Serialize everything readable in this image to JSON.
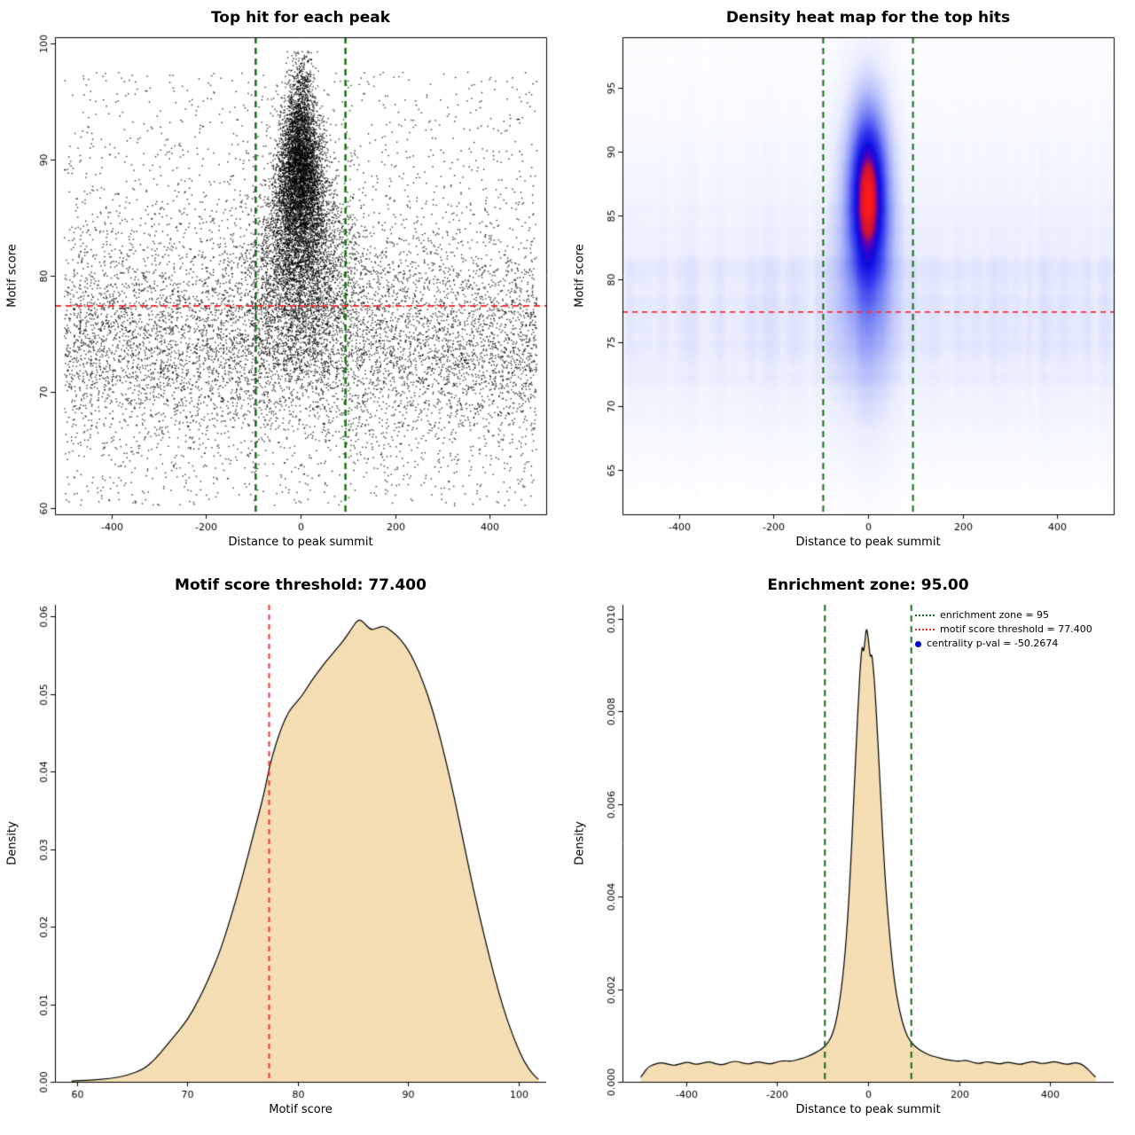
{
  "page": {
    "background": "#ffffff"
  },
  "chart_data": [
    {
      "id": "top-hit-scatter",
      "type": "scatter",
      "title": "Top hit for each peak",
      "xlabel": "Distance to peak summit",
      "ylabel": "Motif score",
      "xlim": [
        -520,
        520
      ],
      "ylim": [
        59.5,
        100.5
      ],
      "xticks": {
        "values": [
          -400,
          -200,
          0,
          200,
          400
        ],
        "labels": [
          "-400",
          "-200",
          "0",
          "200",
          "400"
        ]
      },
      "yticks": {
        "values": [
          60,
          70,
          80,
          90,
          100
        ],
        "labels": [
          "60",
          "70",
          "80",
          "90",
          "100"
        ]
      },
      "box": true,
      "point_color": "#000000",
      "clusters": [
        {
          "n": 6500,
          "x": {
            "dist": "uniform",
            "min": -500,
            "max": 500
          },
          "y": {
            "dist": "normal",
            "mean": 74.5,
            "sd": 4.8,
            "min": 60.2,
            "max": 93
          }
        },
        {
          "n": 2200,
          "x": {
            "dist": "uniform",
            "min": -500,
            "max": 500
          },
          "y": {
            "dist": "uniform",
            "min": 60.2,
            "max": 97.5
          }
        },
        {
          "n": 6000,
          "x": {
            "dist": "normal",
            "mean": 0,
            "sd": 38,
            "min": -260,
            "max": 260
          },
          "y": {
            "dist": "normal",
            "mean": 88.5,
            "sd": 4.4,
            "min": 73,
            "max": 99.3
          },
          "taper": {
            "yTop": 98,
            "range": 20,
            "minFrac": 0.35
          }
        },
        {
          "n": 2800,
          "x": {
            "dist": "normal",
            "mean": 0,
            "sd": 60,
            "min": -300,
            "max": 300
          },
          "y": {
            "dist": "normal",
            "mean": 80,
            "sd": 4.5,
            "min": 68,
            "max": 96
          }
        }
      ],
      "vlines": [
        {
          "x": -95,
          "color": "#166e16",
          "dash": [
            7,
            5
          ],
          "width": 2.5
        },
        {
          "x": 95,
          "color": "#166e16",
          "dash": [
            7,
            5
          ],
          "width": 2.5
        }
      ],
      "hlines": [
        {
          "y": 77.4,
          "color": "#ff3030",
          "dash": [
            7,
            5
          ],
          "width": 2
        }
      ]
    },
    {
      "id": "density-heatmap",
      "type": "heatmap",
      "title": "Density heat map for the top hits",
      "xlabel": "Distance to peak summit",
      "ylabel": "Motif score",
      "xlim": [
        -520,
        520
      ],
      "ylim": [
        61.5,
        99
      ],
      "xticks": {
        "values": [
          -400,
          -200,
          0,
          200,
          400
        ],
        "labels": [
          "-400",
          "-200",
          "0",
          "200",
          "400"
        ]
      },
      "yticks": {
        "values": [
          65,
          70,
          75,
          80,
          85,
          90,
          95
        ],
        "labels": [
          "65",
          "70",
          "75",
          "80",
          "85",
          "90",
          "95"
        ]
      },
      "box": true,
      "components": [
        {
          "kind": "gauss",
          "amp": 1.0,
          "x0": 0,
          "sx": 26,
          "y0": 87,
          "sy": 4.2
        },
        {
          "kind": "gauss",
          "amp": 0.5,
          "x0": 0,
          "sx": 38,
          "y0": 85.5,
          "sy": 6.5
        },
        {
          "kind": "gauss",
          "amp": 0.22,
          "x0": 0,
          "sx": 48,
          "y0": 78,
          "sy": 7
        },
        {
          "kind": "band",
          "amp": 0.12,
          "y0": 76.5,
          "sy": 5.5
        },
        {
          "kind": "band",
          "amp": 0.06,
          "y0": 83,
          "sy": 9
        }
      ],
      "noise": {
        "seed": 7,
        "strength": 0.75
      },
      "colormap": [
        [
          0.0,
          "#ffffff"
        ],
        [
          0.13,
          "#e9edfe"
        ],
        [
          0.28,
          "#bcc4fb"
        ],
        [
          0.45,
          "#7b86f5"
        ],
        [
          0.6,
          "#3a3fee"
        ],
        [
          0.74,
          "#0b0be0"
        ],
        [
          0.83,
          "#5500bb"
        ],
        [
          0.9,
          "#cc1133"
        ],
        [
          1.0,
          "#ff1a1a"
        ]
      ],
      "vlines": [
        {
          "x": -95,
          "color": "#166e16",
          "dash": [
            7,
            5
          ],
          "width": 2
        },
        {
          "x": 95,
          "color": "#166e16",
          "dash": [
            7,
            5
          ],
          "width": 2
        }
      ],
      "hlines": [
        {
          "y": 77.4,
          "color": "#ff3030",
          "dash": [
            6,
            5
          ],
          "width": 1.8
        }
      ]
    },
    {
      "id": "motif-score-density",
      "type": "density",
      "title": "Motif score threshold: 77.400",
      "xlabel": "Motif score",
      "ylabel": "Density",
      "xlim": [
        58,
        102.5
      ],
      "ylim": [
        0,
        0.0615
      ],
      "xticks": {
        "values": [
          60,
          70,
          80,
          90,
          100
        ],
        "labels": [
          "60",
          "70",
          "80",
          "90",
          "100"
        ]
      },
      "yticks": {
        "values": [
          0,
          0.01,
          0.02,
          0.03,
          0.04,
          0.05,
          0.06
        ],
        "labels": [
          "0.00",
          "0.01",
          "0.02",
          "0.03",
          "0.04",
          "0.05",
          "0.06"
        ]
      },
      "box": false,
      "fill": "#F5DEB3",
      "stroke": "#000000",
      "points": [
        [
          59.5,
          0.0001
        ],
        [
          61,
          0.0002
        ],
        [
          63,
          0.0004
        ],
        [
          64.5,
          0.0008
        ],
        [
          66,
          0.0016
        ],
        [
          67,
          0.0028
        ],
        [
          68,
          0.0045
        ],
        [
          69,
          0.0062
        ],
        [
          70,
          0.008
        ],
        [
          71,
          0.0105
        ],
        [
          72,
          0.0135
        ],
        [
          73,
          0.017
        ],
        [
          74,
          0.0215
        ],
        [
          75,
          0.0265
        ],
        [
          76,
          0.032
        ],
        [
          77,
          0.0375
        ],
        [
          77.4,
          0.0405
        ],
        [
          78,
          0.0435
        ],
        [
          78.6,
          0.046
        ],
        [
          79.2,
          0.0478
        ],
        [
          79.8,
          0.0488
        ],
        [
          80.4,
          0.0498
        ],
        [
          81,
          0.0512
        ],
        [
          81.8,
          0.0528
        ],
        [
          82.6,
          0.0543
        ],
        [
          83.4,
          0.0556
        ],
        [
          84.2,
          0.057
        ],
        [
          84.9,
          0.0585
        ],
        [
          85.5,
          0.0597
        ],
        [
          86,
          0.0592
        ],
        [
          86.6,
          0.0582
        ],
        [
          87.2,
          0.0585
        ],
        [
          87.8,
          0.0588
        ],
        [
          88.4,
          0.0582
        ],
        [
          89,
          0.0575
        ],
        [
          89.6,
          0.0565
        ],
        [
          90.2,
          0.0552
        ],
        [
          91,
          0.0528
        ],
        [
          91.8,
          0.0498
        ],
        [
          92.6,
          0.046
        ],
        [
          93.4,
          0.0415
        ],
        [
          94.2,
          0.0365
        ],
        [
          95,
          0.031
        ],
        [
          95.8,
          0.0255
        ],
        [
          96.6,
          0.0205
        ],
        [
          97.4,
          0.0158
        ],
        [
          98.2,
          0.0115
        ],
        [
          99,
          0.0078
        ],
        [
          99.8,
          0.0048
        ],
        [
          100.5,
          0.0026
        ],
        [
          101.2,
          0.0011
        ],
        [
          101.8,
          0.0003
        ]
      ],
      "vlines": [
        {
          "x": 77.4,
          "color": "#ff3030",
          "dash": [
            6,
            5
          ],
          "width": 2
        }
      ],
      "hlines": []
    },
    {
      "id": "enrichment-zone-density",
      "type": "density",
      "title": "Enrichment zone: 95.00",
      "xlabel": "Distance to peak summit",
      "ylabel": "Density",
      "xlim": [
        -540,
        540
      ],
      "ylim": [
        0,
        0.0103
      ],
      "xticks": {
        "values": [
          -400,
          -200,
          0,
          200,
          400
        ],
        "labels": [
          "-400",
          "-200",
          "0",
          "200",
          "400"
        ]
      },
      "yticks": {
        "values": [
          0,
          0.002,
          0.004,
          0.006,
          0.008,
          0.01
        ],
        "labels": [
          "0.000",
          "0.002",
          "0.004",
          "0.006",
          "0.008",
          "0.010"
        ]
      },
      "box": false,
      "fill": "#F5DEB3",
      "stroke": "#000000",
      "points": [
        [
          -500,
          0.0001
        ],
        [
          -492,
          0.0002
        ],
        [
          -484,
          0.00032
        ],
        [
          -470,
          0.00038
        ],
        [
          -455,
          0.00042
        ],
        [
          -440,
          0.00038
        ],
        [
          -425,
          0.00035
        ],
        [
          -410,
          0.0004
        ],
        [
          -395,
          0.00043
        ],
        [
          -380,
          0.00037
        ],
        [
          -365,
          0.0004
        ],
        [
          -350,
          0.00044
        ],
        [
          -335,
          0.00039
        ],
        [
          -320,
          0.00036
        ],
        [
          -305,
          0.00042
        ],
        [
          -290,
          0.00045
        ],
        [
          -275,
          0.0004
        ],
        [
          -260,
          0.00038
        ],
        [
          -245,
          0.00044
        ],
        [
          -230,
          0.00041
        ],
        [
          -215,
          0.00038
        ],
        [
          -200,
          0.00043
        ],
        [
          -185,
          0.00046
        ],
        [
          -170,
          0.00044
        ],
        [
          -155,
          0.00048
        ],
        [
          -140,
          0.00052
        ],
        [
          -125,
          0.00058
        ],
        [
          -110,
          0.00066
        ],
        [
          -100,
          0.00072
        ],
        [
          -90,
          0.00082
        ],
        [
          -80,
          0.00098
        ],
        [
          -70,
          0.0013
        ],
        [
          -60,
          0.0019
        ],
        [
          -52,
          0.0026
        ],
        [
          -45,
          0.0035
        ],
        [
          -38,
          0.0047
        ],
        [
          -32,
          0.006
        ],
        [
          -26,
          0.0073
        ],
        [
          -21,
          0.0083
        ],
        [
          -17,
          0.009
        ],
        [
          -13,
          0.00945
        ],
        [
          -10,
          0.00925
        ],
        [
          -7,
          0.0095
        ],
        [
          -4,
          0.0098
        ],
        [
          -1,
          0.0097
        ],
        [
          2,
          0.0094
        ],
        [
          5,
          0.00915
        ],
        [
          8,
          0.00925
        ],
        [
          11,
          0.009
        ],
        [
          15,
          0.0085
        ],
        [
          19,
          0.0078
        ],
        [
          24,
          0.0069
        ],
        [
          29,
          0.0059
        ],
        [
          35,
          0.0048
        ],
        [
          41,
          0.0039
        ],
        [
          48,
          0.0031
        ],
        [
          55,
          0.0024
        ],
        [
          62,
          0.0019
        ],
        [
          70,
          0.0015
        ],
        [
          78,
          0.0012
        ],
        [
          86,
          0.00098
        ],
        [
          95,
          0.00085
        ],
        [
          105,
          0.00075
        ],
        [
          115,
          0.00068
        ],
        [
          125,
          0.00062
        ],
        [
          140,
          0.00056
        ],
        [
          155,
          0.00052
        ],
        [
          170,
          0.00048
        ],
        [
          185,
          0.00046
        ],
        [
          200,
          0.00044
        ],
        [
          215,
          0.00047
        ],
        [
          230,
          0.00042
        ],
        [
          245,
          0.00039
        ],
        [
          260,
          0.00044
        ],
        [
          275,
          0.00041
        ],
        [
          290,
          0.00038
        ],
        [
          305,
          0.00043
        ],
        [
          320,
          0.0004
        ],
        [
          335,
          0.00037
        ],
        [
          350,
          0.00042
        ],
        [
          365,
          0.00044
        ],
        [
          380,
          0.00039
        ],
        [
          395,
          0.00041
        ],
        [
          410,
          0.00044
        ],
        [
          425,
          0.0004
        ],
        [
          440,
          0.00037
        ],
        [
          455,
          0.00042
        ],
        [
          470,
          0.00038
        ],
        [
          480,
          0.0003
        ],
        [
          490,
          0.0002
        ],
        [
          500,
          0.0001
        ]
      ],
      "vlines": [
        {
          "x": -95,
          "color": "#166e16",
          "dash": [
            7,
            5
          ],
          "width": 2
        },
        {
          "x": 95,
          "color": "#166e16",
          "dash": [
            7,
            5
          ],
          "width": 2
        }
      ],
      "hlines": [],
      "legend": {
        "entries": [
          {
            "swatch": "dotted-line",
            "color": "#166e16",
            "label": "enrichment zone = 95"
          },
          {
            "swatch": "dotted-line",
            "color": "#ff3030",
            "label": "motif score threshold = 77.400"
          },
          {
            "swatch": "dot",
            "color": "#0000cd",
            "label": "centrality p-val = -50.2674"
          }
        ]
      }
    }
  ]
}
